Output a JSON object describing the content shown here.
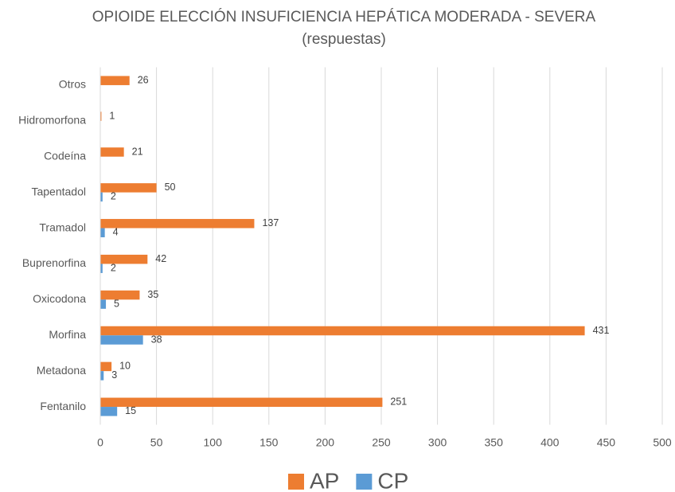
{
  "chart_data": {
    "type": "bar",
    "orientation": "horizontal",
    "title": "OPIOIDE ELECCIÓN INSUFICIENCIA HEPÁTICA MODERADA - SEVERA",
    "subtitle": "(respuestas)",
    "categories": [
      "Fentanilo",
      "Metadona",
      "Morfina",
      "Oxicodona",
      "Buprenorfina",
      "Tramadol",
      "Tapentadol",
      "Codeína",
      "Hidromorfona",
      "Otros"
    ],
    "series": [
      {
        "name": "AP",
        "color": "#ed7d31",
        "values": [
          251,
          10,
          431,
          35,
          42,
          137,
          50,
          21,
          1,
          26
        ]
      },
      {
        "name": "CP",
        "color": "#5b9bd5",
        "values": [
          15,
          3,
          38,
          5,
          2,
          4,
          2,
          null,
          null,
          null
        ]
      }
    ],
    "xlim": [
      0,
      500
    ],
    "xticks": [
      0,
      50,
      100,
      150,
      200,
      250,
      300,
      350,
      400,
      450,
      500
    ],
    "grid": true,
    "legend": "bottom"
  }
}
